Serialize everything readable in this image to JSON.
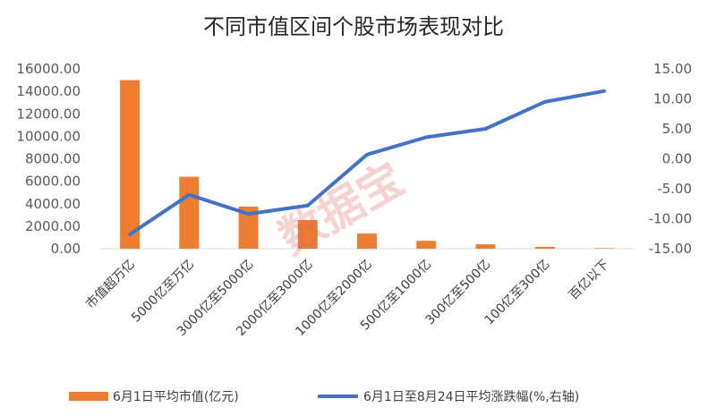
{
  "chart_data": {
    "type": "bar",
    "title": "不同市值区间个股市场表现对比",
    "categories": [
      "市值超万亿",
      "5000亿至万亿",
      "3000亿至5000亿",
      "2000亿至3000亿",
      "1000亿至2000亿",
      "500亿至1000亿",
      "300亿至500亿",
      "100亿至300亿",
      "百亿以下"
    ],
    "series": [
      {
        "name": "6月1日平均市值(亿元)",
        "type": "bar",
        "axis": "left",
        "color": "#ED7D31",
        "values": [
          15000,
          6400,
          3750,
          2550,
          1350,
          700,
          390,
          170,
          50
        ]
      },
      {
        "name": "6月1日至8月24日平均涨跌幅(%,右轴)",
        "type": "line",
        "axis": "right",
        "color": "#4472C4",
        "values": [
          -12.6,
          -6.0,
          -9.2,
          -7.8,
          0.7,
          3.6,
          5.0,
          9.5,
          11.3
        ]
      }
    ],
    "y_left": {
      "ylim": [
        0,
        16000
      ],
      "ticks": [
        "0.00",
        "2000.00",
        "4000.00",
        "6000.00",
        "8000.00",
        "10000.00",
        "12000.00",
        "14000.00",
        "16000.00"
      ]
    },
    "y_right": {
      "ylim": [
        -15,
        15
      ],
      "ticks": [
        "-15.00",
        "-10.00",
        "-5.00",
        "0.00",
        "5.00",
        "10.00",
        "15.00"
      ]
    },
    "legend_position": "bottom",
    "grid": false
  },
  "watermark": "数据宝"
}
